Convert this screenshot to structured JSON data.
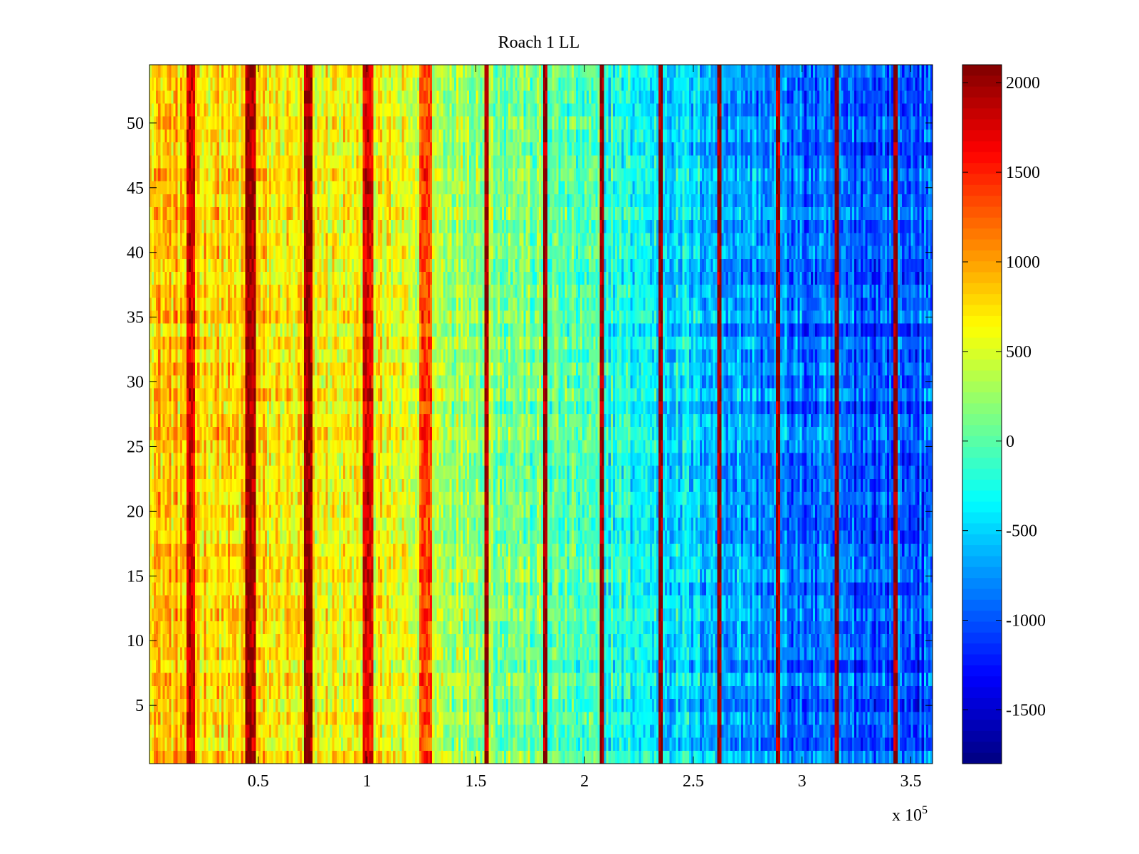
{
  "chart_data": {
    "type": "heatmap",
    "title": "Roach 1 LL",
    "xlabel": "",
    "ylabel": "",
    "x_exponent_label": {
      "prefix": "x 10",
      "exponent": "5"
    },
    "x_range": [
      0,
      3.6
    ],
    "x_ticks": [
      0.5,
      1,
      1.5,
      2,
      2.5,
      3,
      3.5
    ],
    "x_tick_labels": [
      "0.5",
      "1",
      "1.5",
      "2",
      "2.5",
      "3",
      "3.5"
    ],
    "y_range": [
      0.5,
      54.5
    ],
    "y_ticks": [
      5,
      10,
      15,
      20,
      25,
      30,
      35,
      40,
      45,
      50
    ],
    "y_tick_labels": [
      "5",
      "10",
      "15",
      "20",
      "25",
      "30",
      "35",
      "40",
      "45",
      "50"
    ],
    "rows": 54,
    "colormap": "jet",
    "colorbar": {
      "range": [
        -1800,
        2100
      ],
      "ticks": [
        2000,
        1500,
        1000,
        500,
        0,
        -500,
        -1000,
        -1500
      ],
      "tick_labels": [
        "2000",
        "1500",
        "1000",
        "500",
        "0",
        "-500",
        "-1000",
        "-1500"
      ]
    },
    "trend": {
      "x": [
        0,
        0.5,
        1,
        1.5,
        2,
        2.5,
        3,
        3.6
      ],
      "value": [
        900,
        700,
        600,
        300,
        -100,
        -500,
        -900,
        -1000
      ]
    },
    "hot_bands": [
      {
        "x": 0.19,
        "value": 1800
      },
      {
        "x": 0.46,
        "value": 2050
      },
      {
        "x": 0.73,
        "value": 2000
      },
      {
        "x": 1.0,
        "value": 1750
      },
      {
        "x": 1.27,
        "value": 1450
      }
    ],
    "line_bands": [
      1.55,
      1.82,
      2.08,
      2.35,
      2.62,
      2.89,
      3.16,
      3.43
    ]
  }
}
